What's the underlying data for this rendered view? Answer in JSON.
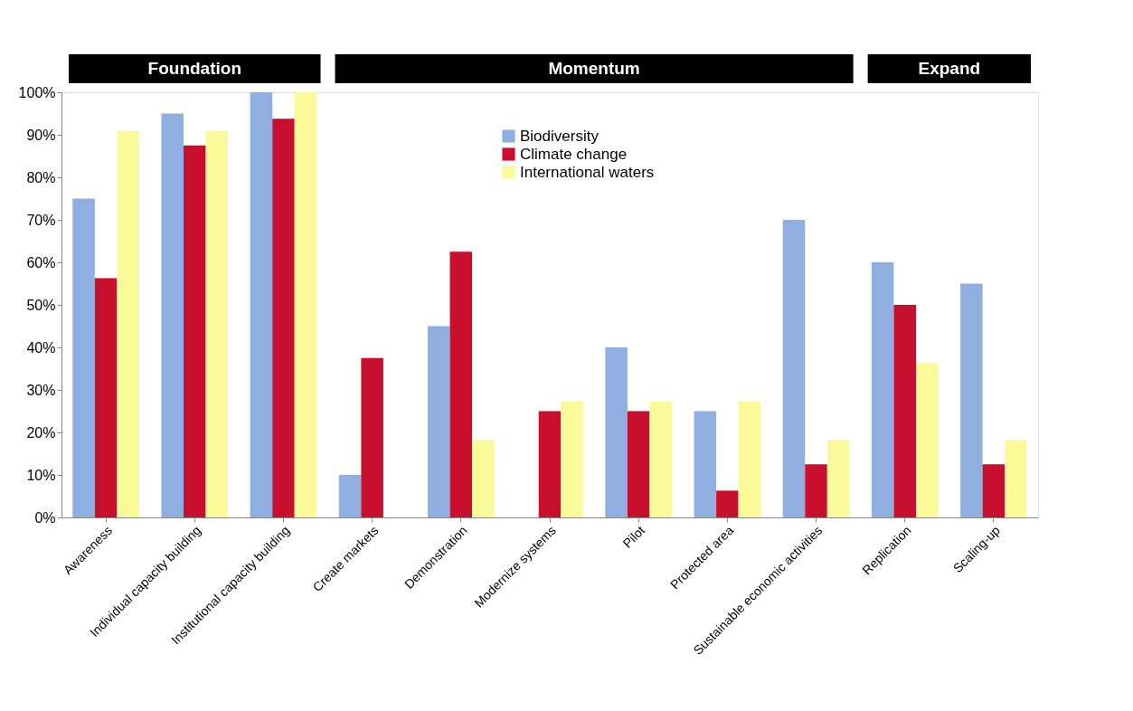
{
  "chart_data": {
    "type": "bar",
    "categories": [
      "Awareness",
      "Individual capacity building",
      "Institutional capacity building",
      "Create markets",
      "Demonstration",
      "Modernize systems",
      "Pilot",
      "Protected area",
      "Sustainable economic activities",
      "Replication",
      "Scaling-up"
    ],
    "series": [
      {
        "name": "Biodiversity",
        "color": "#8fafe0",
        "values": [
          75,
          95,
          100,
          10,
          45,
          null,
          40,
          25,
          70,
          60,
          55
        ]
      },
      {
        "name": "Climate change",
        "color": "#c8102e",
        "values": [
          56.3,
          87.5,
          93.8,
          37.5,
          62.5,
          25,
          25,
          6.3,
          12.5,
          50,
          12.5
        ]
      },
      {
        "name": "International waters",
        "color": "#fafa98",
        "values": [
          90.9,
          90.9,
          100,
          null,
          18.2,
          27.3,
          27.3,
          27.3,
          18.2,
          36.4,
          18.2
        ]
      }
    ],
    "ylim": [
      0,
      100
    ],
    "yticks": [
      {
        "value": 0,
        "label": "0%"
      },
      {
        "value": 10,
        "label": "10%"
      },
      {
        "value": 20,
        "label": "20%"
      },
      {
        "value": 30,
        "label": "30%"
      },
      {
        "value": 40,
        "label": "40%"
      },
      {
        "value": 50,
        "label": "50%"
      },
      {
        "value": 60,
        "label": "60%"
      },
      {
        "value": 70,
        "label": "70%"
      },
      {
        "value": 80,
        "label": "80%"
      },
      {
        "value": 90,
        "label": "90%"
      },
      {
        "value": 100,
        "label": "100%"
      }
    ],
    "annotations": [
      "Foundation",
      "Momentum",
      "Expand"
    ],
    "grid": false,
    "legend": "top"
  }
}
